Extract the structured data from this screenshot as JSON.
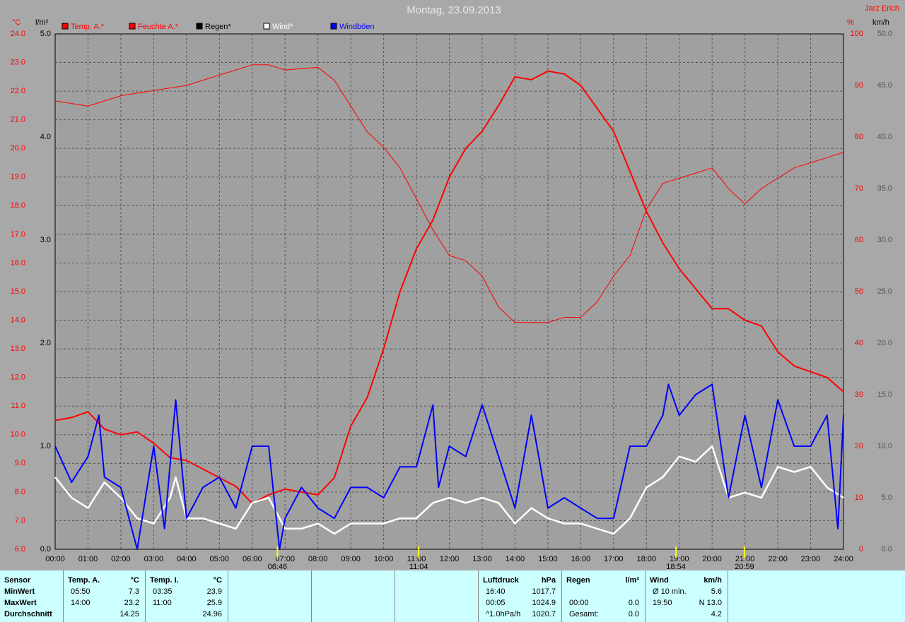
{
  "chart_data": {
    "type": "line",
    "title": "Montag, 23.09.2013",
    "author": "Jarz Erich",
    "axis_units": {
      "temp": "°C",
      "rain": "l/m²",
      "hum": "%",
      "wind": "km/h"
    },
    "xlim": [
      0,
      24
    ],
    "xticks": [
      {
        "value": 0,
        "label": "00:00"
      },
      {
        "value": 1,
        "label": "01:00"
      },
      {
        "value": 2,
        "label": "02:00"
      },
      {
        "value": 3,
        "label": "03:00"
      },
      {
        "value": 4,
        "label": "04:00"
      },
      {
        "value": 5,
        "label": "05:00"
      },
      {
        "value": 6,
        "label": "06:00"
      },
      {
        "value": 7,
        "label": "07:00"
      },
      {
        "value": 8,
        "label": "08:00"
      },
      {
        "value": 9,
        "label": "09:00"
      },
      {
        "value": 10,
        "label": "10:00"
      },
      {
        "value": 11,
        "label": "11:00"
      },
      {
        "value": 12,
        "label": "12:00"
      },
      {
        "value": 13,
        "label": "13:00"
      },
      {
        "value": 14,
        "label": "14:00"
      },
      {
        "value": 15,
        "label": "15:00"
      },
      {
        "value": 16,
        "label": "16:00"
      },
      {
        "value": 17,
        "label": "17:00"
      },
      {
        "value": 18,
        "label": "18:00"
      },
      {
        "value": 19,
        "label": "19:00"
      },
      {
        "value": 20,
        "label": "20:00"
      },
      {
        "value": 21,
        "label": "21:00"
      },
      {
        "value": 22,
        "label": "22:00"
      },
      {
        "value": 23,
        "label": "23:00"
      },
      {
        "value": 24,
        "label": "24:00"
      }
    ],
    "ylim": [
      6,
      24
    ],
    "yticks": [
      {
        "value": 6,
        "label": "6.0"
      },
      {
        "value": 7,
        "label": "7.0"
      },
      {
        "value": 8,
        "label": "8.0"
      },
      {
        "value": 9,
        "label": "9.0"
      },
      {
        "value": 10,
        "label": "10.0"
      },
      {
        "value": 11,
        "label": "11.0"
      },
      {
        "value": 12,
        "label": "12.0"
      },
      {
        "value": 13,
        "label": "13.0"
      },
      {
        "value": 14,
        "label": "14.0"
      },
      {
        "value": 15,
        "label": "15.0"
      },
      {
        "value": 16,
        "label": "16.0"
      },
      {
        "value": 17,
        "label": "17.0"
      },
      {
        "value": 18,
        "label": "18.0"
      },
      {
        "value": 19,
        "label": "19.0"
      },
      {
        "value": 20,
        "label": "20.0"
      },
      {
        "value": 21,
        "label": "21.0"
      },
      {
        "value": 22,
        "label": "22.0"
      },
      {
        "value": 23,
        "label": "23.0"
      },
      {
        "value": 24,
        "label": "24.0"
      }
    ],
    "rainlim": [
      0,
      5
    ],
    "rainticks": [
      {
        "value": 0,
        "label": "0.0"
      },
      {
        "value": 1,
        "label": "1.0"
      },
      {
        "value": 2,
        "label": "2.0"
      },
      {
        "value": 3,
        "label": "3.0"
      },
      {
        "value": 4,
        "label": "4.0"
      },
      {
        "value": 5,
        "label": "5.0"
      }
    ],
    "y2lim": [
      0,
      100
    ],
    "y2ticks": [
      0,
      10,
      20,
      30,
      40,
      50,
      60,
      70,
      80,
      90,
      100
    ],
    "windlim": [
      0,
      50
    ],
    "windticks": [
      {
        "value": 0,
        "label": "0.0"
      },
      {
        "value": 5,
        "label": "5.0"
      },
      {
        "value": 10,
        "label": "10.0"
      },
      {
        "value": 15,
        "label": "15.0"
      },
      {
        "value": 20,
        "label": "20.0"
      },
      {
        "value": 25,
        "label": "25.0"
      },
      {
        "value": 30,
        "label": "30.0"
      },
      {
        "value": 35,
        "label": "35.0"
      },
      {
        "value": 40,
        "label": "40.0"
      },
      {
        "value": 45,
        "label": "45.0"
      },
      {
        "value": 50,
        "label": "50.0"
      }
    ],
    "grid": true,
    "series": [
      {
        "name": "Temp. A.*",
        "color": "#ff0000",
        "axis": "y",
        "width": 2,
        "x": [
          0,
          0.5,
          1,
          1.5,
          2,
          2.5,
          3,
          3.5,
          4,
          4.5,
          5,
          5.5,
          6,
          6.5,
          7,
          7.5,
          8,
          8.5,
          9,
          9.5,
          10,
          10.5,
          11,
          11.5,
          12,
          12.5,
          13,
          13.5,
          14,
          14.5,
          15,
          15.5,
          16,
          16.5,
          17,
          17.5,
          18,
          18.5,
          19,
          19.5,
          20,
          20.5,
          21,
          21.5,
          22,
          22.5,
          23,
          23.5,
          24
        ],
        "values": [
          10.5,
          10.6,
          10.8,
          10.2,
          10.0,
          10.1,
          9.7,
          9.2,
          9.1,
          8.8,
          8.5,
          8.2,
          7.6,
          7.9,
          8.1,
          8.0,
          7.9,
          8.5,
          10.3,
          11.3,
          13.0,
          15.0,
          16.5,
          17.5,
          19.0,
          20.0,
          20.6,
          21.5,
          22.5,
          22.4,
          22.7,
          22.6,
          22.2,
          21.4,
          20.6,
          19.2,
          17.8,
          16.7,
          15.8,
          15.1,
          14.4,
          14.4,
          14.0,
          13.8,
          12.9,
          12.4,
          12.2,
          12.0,
          11.5
        ]
      },
      {
        "name": "Feuchte A.*",
        "color": "#ff0000",
        "axis": "y2",
        "width": 1,
        "x": [
          0,
          1,
          2,
          3,
          4,
          5,
          6,
          6.5,
          7,
          8,
          8.5,
          9,
          9.5,
          10,
          10.5,
          11,
          11.5,
          12,
          12.5,
          13,
          13.5,
          14,
          14.5,
          15,
          15.5,
          16,
          16.5,
          17,
          17.5,
          18,
          18.5,
          19,
          19.5,
          20,
          20.5,
          21,
          21.5,
          22,
          22.5,
          23,
          23.5,
          24
        ],
        "values": [
          87,
          86,
          88,
          89,
          90,
          92,
          94,
          94,
          93,
          93.5,
          91,
          86,
          81,
          78,
          74,
          68,
          62,
          57,
          56,
          53,
          47,
          44,
          44,
          44,
          45,
          45,
          48,
          53,
          57,
          66,
          71,
          72,
          73,
          74,
          70,
          67,
          70,
          72,
          74,
          75,
          76,
          77
        ]
      },
      {
        "name": "Regen*",
        "color": "#000000",
        "axis": "rain"
      },
      {
        "name": "Wind*",
        "color": "#ffffff",
        "axis": "wind",
        "width": 2.5,
        "x": [
          0,
          0.5,
          1,
          1.5,
          2,
          2.5,
          3,
          3.5,
          3.67,
          4,
          4.5,
          5,
          5.5,
          6,
          6.5,
          7,
          7.5,
          8,
          8.5,
          9,
          9.5,
          10,
          10.5,
          11,
          11.5,
          12,
          12.5,
          13,
          13.5,
          14,
          14.5,
          15,
          15.5,
          16,
          16.5,
          17,
          17.5,
          18,
          18.5,
          19,
          19.5,
          20,
          20.5,
          21,
          21.5,
          22,
          22.5,
          23,
          23.5,
          24
        ],
        "values": [
          7,
          5,
          4,
          6.5,
          5,
          3,
          2.5,
          5,
          7,
          3,
          3,
          2.5,
          2,
          4.5,
          5,
          2,
          2,
          2.5,
          1.5,
          2.5,
          2.5,
          2.5,
          3,
          3,
          4.5,
          5,
          4.5,
          5,
          4.5,
          2.5,
          4,
          3,
          2.5,
          2.5,
          2,
          1.5,
          3,
          6,
          7,
          9,
          8.5,
          10,
          5,
          5.5,
          5,
          8,
          7.5,
          8,
          6,
          5
        ]
      },
      {
        "name": "Windböen",
        "color": "#0000ff",
        "axis": "wind",
        "width": 2,
        "x": [
          0,
          0.5,
          1,
          1.33,
          1.5,
          2,
          2.5,
          3,
          3.33,
          3.67,
          4,
          4.5,
          5,
          5.5,
          6,
          6.5,
          6.83,
          7,
          7.5,
          8,
          8.5,
          9,
          9.5,
          10,
          10.5,
          11,
          11.5,
          11.67,
          12,
          12.5,
          13,
          13.5,
          14,
          14.5,
          15,
          15.5,
          16,
          16.5,
          17,
          17.5,
          18,
          18.5,
          18.67,
          19,
          19.5,
          20,
          20.5,
          21,
          21.5,
          22,
          22.5,
          23,
          23.5,
          23.83,
          24
        ],
        "values": [
          10,
          6.5,
          9,
          13,
          7,
          6,
          0,
          10,
          2,
          14.5,
          3,
          6,
          7,
          4,
          10,
          10,
          0,
          3,
          6,
          4,
          3,
          6,
          6,
          5,
          8,
          8,
          14,
          6,
          10,
          9,
          14,
          9,
          4,
          13,
          4,
          5,
          4,
          3,
          3,
          10,
          10,
          13,
          16,
          13,
          15,
          16,
          5,
          13,
          6,
          14.5,
          10,
          10,
          13,
          2,
          13
        ]
      }
    ],
    "annotations": [
      "06:46",
      "11:04",
      "18:54",
      "20:59"
    ]
  },
  "table": {
    "blocks": [
      {
        "header": [
          "Sensor"
        ],
        "rows": [
          [
            "MinWert"
          ],
          [
            "MaxWert"
          ],
          [
            "Durchschnitt"
          ]
        ]
      },
      {
        "header": [
          "Temp. A.",
          "°C"
        ],
        "rows": [
          [
            "05:50",
            "7.3"
          ],
          [
            "14:00",
            "23.2"
          ],
          [
            "14.25"
          ]
        ]
      },
      {
        "header": [
          "Temp. I.",
          "°C"
        ],
        "rows": [
          [
            "03:35",
            "23.9"
          ],
          [
            "11:00",
            "25.9"
          ],
          [
            "24.96"
          ]
        ]
      },
      {
        "header": [
          "Luftdruck",
          "hPa"
        ],
        "rows": [
          [
            "16:40",
            "1017.7"
          ],
          [
            "00:05",
            "1024.9"
          ],
          [
            "^1.0hPa/h",
            "1020.7"
          ]
        ]
      },
      {
        "header": [
          "Regen",
          "l/m²"
        ],
        "rows": [
          null,
          [
            "00:00",
            "0.0"
          ],
          [
            "Gesamt:",
            "0.0"
          ]
        ]
      },
      {
        "header": [
          "Wind",
          "km/h"
        ],
        "rows": [
          [
            "Ø 10 min.",
            "5.6"
          ],
          [
            "19:50",
            "N 13.0"
          ],
          [
            "4.2"
          ]
        ]
      }
    ]
  }
}
